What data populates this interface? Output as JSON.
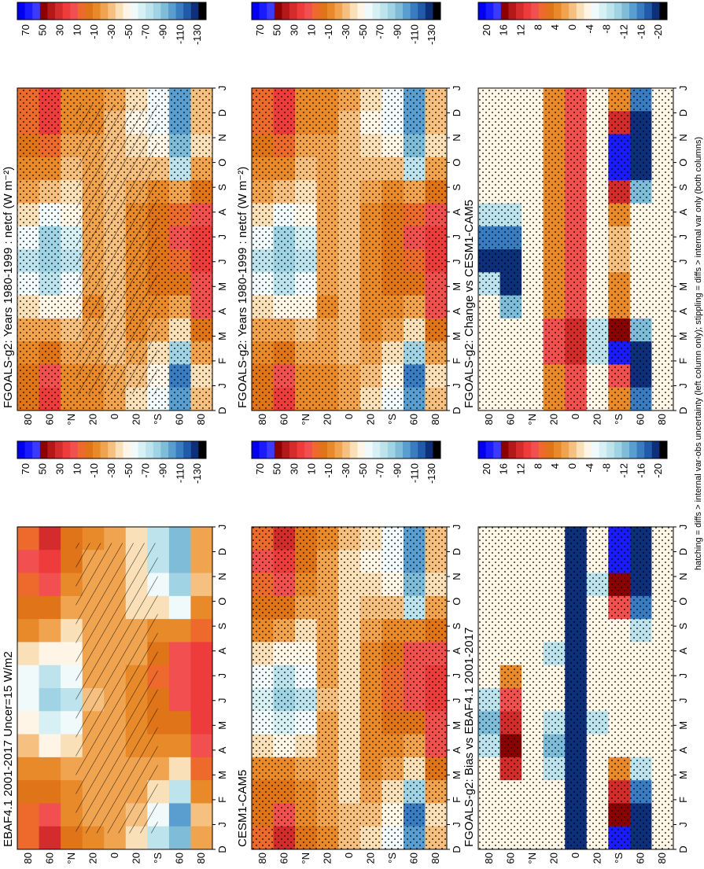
{
  "footnote": "hatching = diffs > internal var-obs uncertainty (left column only); stippling = diffs > internal var only (both columns)",
  "month_ticks": [
    "D",
    "J",
    "F",
    "M",
    "A",
    "M",
    "J",
    "J",
    "A",
    "S",
    "O",
    "N",
    "D",
    "J"
  ],
  "lat_ticks": [
    "80",
    "60",
    "°N",
    "20",
    "0",
    "20",
    "°S",
    "60",
    "80"
  ],
  "colorbars": {
    "absolute": {
      "labels": [
        "70",
        "50",
        "30",
        "10",
        "-10",
        "-30",
        "-50",
        "-70",
        "-90",
        "-110",
        "-130"
      ],
      "colors": [
        "#0000f0",
        "#1b1bff",
        "#3b3bff",
        "#8b0000",
        "#b51818",
        "#d42c2c",
        "#ee3b3b",
        "#f25050",
        "#ee6a2c",
        "#e07418",
        "#e88a2a",
        "#f0a450",
        "#f5c080",
        "#fae0b8",
        "#fff5e6",
        "#f0fafa",
        "#d6f0f3",
        "#bde4ec",
        "#a0d4e4",
        "#7fbcd8",
        "#5a9ed0",
        "#3a7cc0",
        "#205aa8",
        "#0e2f7a",
        "#000000"
      ]
    },
    "difference": {
      "labels": [
        "20",
        "16",
        "12",
        "8",
        "4",
        "0",
        "-4",
        "-8",
        "-12",
        "-16",
        "-20"
      ],
      "colors": [
        "#0000f0",
        "#1b1bff",
        "#3b3bff",
        "#8b0000",
        "#b51818",
        "#d42c2c",
        "#ee3b3b",
        "#f25050",
        "#ee6a2c",
        "#e07418",
        "#e88a2a",
        "#f0a450",
        "#f5c080",
        "#fae0b8",
        "#fff5e6",
        "#f0fafa",
        "#d6f0f3",
        "#bde4ec",
        "#a0d4e4",
        "#7fbcd8",
        "#5a9ed0",
        "#3a7cc0",
        "#205aa8",
        "#0e2f7a",
        "#000000"
      ]
    }
  },
  "chart_data": [
    {
      "type": "heatmap",
      "title": "FGOALS-g2: Years 1980-1999 : netcf (W m⁻²)",
      "x": [
        "D",
        "J",
        "F",
        "M",
        "A",
        "M",
        "J",
        "J",
        "A",
        "S",
        "O",
        "N",
        "D",
        "J"
      ],
      "y": [
        "80",
        "60",
        "°N",
        "20",
        "0",
        "20",
        "°S",
        "60",
        "80"
      ],
      "colorbar": "absolute",
      "overlays": [
        "stippling",
        "hatching"
      ],
      "values": [
        [
          0,
          -5,
          -10,
          -20,
          -40,
          -60,
          -70,
          -60,
          -40,
          -20,
          -10,
          0,
          5,
          5
        ],
        [
          25,
          10,
          -5,
          -20,
          -50,
          -70,
          -85,
          -80,
          -55,
          -30,
          -10,
          5,
          20,
          25
        ],
        [
          -10,
          -15,
          -20,
          -30,
          -45,
          -60,
          -75,
          -65,
          -50,
          -40,
          -30,
          -20,
          -10,
          -10
        ],
        [
          -10,
          -15,
          -20,
          -20,
          -15,
          -20,
          -25,
          -20,
          -20,
          -20,
          -20,
          -20,
          -15,
          -10
        ],
        [
          -25,
          -25,
          -30,
          -30,
          -30,
          -30,
          -30,
          -30,
          -30,
          -30,
          -30,
          -30,
          -30,
          -25
        ],
        [
          -40,
          -30,
          -20,
          -15,
          -15,
          -10,
          -10,
          -10,
          -15,
          -20,
          -30,
          -40,
          -45,
          -40
        ],
        [
          -60,
          -50,
          -35,
          -20,
          -10,
          -5,
          0,
          0,
          -5,
          -10,
          -30,
          -50,
          -60,
          -60
        ],
        [
          -100,
          -110,
          -80,
          -40,
          -20,
          -5,
          5,
          10,
          5,
          -20,
          -70,
          -90,
          -100,
          -100
        ],
        [
          -30,
          -40,
          -20,
          0,
          10,
          15,
          20,
          20,
          15,
          0,
          -20,
          -40,
          -30,
          -30
        ]
      ]
    },
    {
      "type": "heatmap",
      "title": "FGOALS-g2: Years 1980-1999 : netcf (W m⁻²)",
      "x": [
        "D",
        "J",
        "F",
        "M",
        "A",
        "M",
        "J",
        "J",
        "A",
        "S",
        "O",
        "N",
        "D",
        "J"
      ],
      "y": [
        "80",
        "60",
        "°N",
        "20",
        "0",
        "20",
        "°S",
        "60",
        "80"
      ],
      "colorbar": "absolute",
      "overlays": [
        "stippling"
      ],
      "values": [
        [
          0,
          -5,
          -10,
          -20,
          -40,
          -60,
          -70,
          -60,
          -40,
          -20,
          -10,
          0,
          5,
          5
        ],
        [
          25,
          10,
          -5,
          -20,
          -50,
          -70,
          -85,
          -80,
          -55,
          -30,
          -10,
          5,
          20,
          25
        ],
        [
          -10,
          -15,
          -20,
          -30,
          -45,
          -60,
          -75,
          -65,
          -50,
          -40,
          -30,
          -20,
          -10,
          -10
        ],
        [
          -10,
          -15,
          -20,
          -20,
          -15,
          -20,
          -25,
          -20,
          -20,
          -20,
          -20,
          -20,
          -15,
          -10
        ],
        [
          -25,
          -25,
          -30,
          -30,
          -30,
          -30,
          -30,
          -30,
          -30,
          -30,
          -30,
          -30,
          -30,
          -25
        ],
        [
          -40,
          -30,
          -20,
          -15,
          -15,
          -10,
          -10,
          -10,
          -15,
          -20,
          -30,
          -40,
          -45,
          -40
        ],
        [
          -60,
          -50,
          -35,
          -20,
          -10,
          -5,
          0,
          0,
          -5,
          -10,
          -30,
          -50,
          -60,
          -60
        ],
        [
          -100,
          -110,
          -80,
          -40,
          -20,
          -5,
          5,
          10,
          5,
          -20,
          -70,
          -90,
          -100,
          -100
        ],
        [
          -30,
          -40,
          -20,
          0,
          10,
          15,
          20,
          20,
          15,
          0,
          -20,
          -40,
          -30,
          -30
        ]
      ]
    },
    {
      "type": "heatmap",
      "title": "EBAF4.1 2001-2017 Uncer=15 W/m2",
      "x": [
        "D",
        "J",
        "F",
        "M",
        "A",
        "M",
        "J",
        "J",
        "A",
        "S",
        "O",
        "N",
        "D",
        "J"
      ],
      "y": [
        "80",
        "60",
        "°N",
        "20",
        "0",
        "20",
        "°S",
        "60",
        "80"
      ],
      "colorbar": "absolute",
      "overlays": [
        "hatching"
      ],
      "values": [
        [
          5,
          5,
          0,
          -10,
          -30,
          -50,
          -60,
          -55,
          -35,
          -15,
          -5,
          5,
          10,
          5
        ],
        [
          30,
          15,
          0,
          -15,
          -45,
          -65,
          -80,
          -75,
          -50,
          -25,
          -5,
          10,
          25,
          30
        ],
        [
          -5,
          -10,
          -15,
          -25,
          -40,
          -55,
          -70,
          -60,
          -45,
          -35,
          -25,
          -15,
          -5,
          -5
        ],
        [
          -15,
          -20,
          -20,
          -25,
          -20,
          -25,
          -30,
          -25,
          -25,
          -25,
          -25,
          -25,
          -20,
          -15
        ],
        [
          -20,
          -20,
          -25,
          -25,
          -25,
          -25,
          -25,
          -25,
          -25,
          -25,
          -25,
          -25,
          -25,
          -20
        ],
        [
          -35,
          -30,
          -25,
          -20,
          -15,
          -15,
          -15,
          -15,
          -20,
          -25,
          -35,
          -40,
          -40,
          -35
        ],
        [
          -70,
          -55,
          -40,
          -25,
          -15,
          -5,
          0,
          5,
          0,
          -15,
          -40,
          -60,
          -70,
          -70
        ],
        [
          -90,
          -100,
          -70,
          -35,
          -15,
          0,
          10,
          15,
          10,
          -10,
          -60,
          -80,
          -90,
          -90
        ],
        [
          -20,
          -30,
          -10,
          5,
          15,
          20,
          25,
          25,
          20,
          5,
          -15,
          -30,
          -20,
          -20
        ]
      ]
    },
    {
      "type": "heatmap",
      "title": "CESM1-CAM5",
      "x": [
        "D",
        "J",
        "F",
        "M",
        "A",
        "M",
        "J",
        "J",
        "A",
        "S",
        "O",
        "N",
        "D",
        "J"
      ],
      "y": [
        "80",
        "60",
        "°N",
        "20",
        "0",
        "20",
        "°S",
        "60",
        "80"
      ],
      "colorbar": "absolute",
      "overlays": [
        "stippling"
      ],
      "values": [
        [
          5,
          0,
          -5,
          -15,
          -35,
          -55,
          -65,
          -55,
          -35,
          -15,
          -5,
          5,
          10,
          5
        ],
        [
          30,
          15,
          0,
          -15,
          -45,
          -65,
          -80,
          -75,
          -50,
          -25,
          -5,
          10,
          25,
          30
        ],
        [
          -5,
          -10,
          -15,
          -25,
          -40,
          -55,
          -70,
          -60,
          -45,
          -35,
          -25,
          -15,
          -5,
          -5
        ],
        [
          -15,
          -20,
          -25,
          -25,
          -20,
          -25,
          -30,
          -25,
          -25,
          -25,
          -25,
          -25,
          -20,
          -15
        ],
        [
          -30,
          -30,
          -35,
          -35,
          -35,
          -35,
          -35,
          -35,
          -35,
          -35,
          -35,
          -35,
          -35,
          -30
        ],
        [
          -40,
          -30,
          -20,
          -15,
          -10,
          -10,
          -10,
          -10,
          -15,
          -20,
          -30,
          -40,
          -45,
          -40
        ],
        [
          -60,
          -50,
          -35,
          -20,
          -10,
          -5,
          5,
          5,
          0,
          -10,
          -30,
          -50,
          -60,
          -60
        ],
        [
          -100,
          -110,
          -80,
          -40,
          -20,
          0,
          10,
          15,
          10,
          -15,
          -70,
          -90,
          -100,
          -100
        ],
        [
          -30,
          -40,
          -20,
          0,
          10,
          15,
          20,
          20,
          15,
          0,
          -20,
          -40,
          -30,
          -30
        ]
      ]
    },
    {
      "type": "heatmap",
      "title": "FGOALS-g2: Bias vs EBAF4.1 2001-2017",
      "x": [
        "D",
        "J",
        "F",
        "M",
        "A",
        "M",
        "J",
        "J",
        "A",
        "S",
        "O",
        "N",
        "D",
        "J"
      ],
      "y": [
        "80",
        "60",
        "°N",
        "20",
        "0",
        "20",
        "°S",
        "60",
        "80"
      ],
      "colorbar": "difference",
      "overlays": [
        "stippling"
      ],
      "values": [
        [
          -4,
          -4,
          -4,
          -4,
          -8,
          -12,
          -8,
          -4,
          -4,
          -4,
          -4,
          -4,
          -4,
          -4
        ],
        [
          -4,
          -4,
          -4,
          12,
          16,
          12,
          8,
          4,
          -4,
          -4,
          -4,
          -4,
          -4,
          -4
        ],
        [
          -4,
          -4,
          -4,
          -4,
          -4,
          -4,
          -4,
          -4,
          -4,
          -4,
          -4,
          -4,
          -4,
          -4
        ],
        [
          -4,
          -4,
          -4,
          -8,
          -12,
          -8,
          -4,
          -4,
          -8,
          -4,
          -4,
          -4,
          -4,
          -4
        ],
        [
          -20,
          -20,
          -20,
          -20,
          -20,
          -20,
          -20,
          -20,
          -20,
          -20,
          -20,
          -20,
          -20,
          -20
        ],
        [
          -4,
          -4,
          -4,
          -4,
          -4,
          -8,
          -4,
          -4,
          -4,
          -4,
          -4,
          -8,
          -4,
          -4
        ],
        [
          20,
          16,
          12,
          4,
          -4,
          -4,
          -4,
          -4,
          -4,
          -4,
          8,
          16,
          20,
          20
        ],
        [
          -20,
          -20,
          -16,
          -8,
          -4,
          -4,
          -4,
          -4,
          -4,
          -8,
          -16,
          -20,
          -20,
          -20
        ],
        [
          -4,
          -4,
          -4,
          -4,
          -4,
          -4,
          -4,
          -4,
          -4,
          -4,
          -4,
          -4,
          -4,
          -4
        ]
      ]
    },
    {
      "type": "heatmap",
      "title": "FGOALS-g2: Change vs CESM1-CAM5",
      "x": [
        "D",
        "J",
        "F",
        "M",
        "A",
        "M",
        "J",
        "J",
        "A",
        "S",
        "O",
        "N",
        "D",
        "J"
      ],
      "y": [
        "80",
        "60",
        "°N",
        "20",
        "0",
        "20",
        "°S",
        "60",
        "80"
      ],
      "colorbar": "difference",
      "overlays": [
        "stippling"
      ],
      "values": [
        [
          -4,
          -4,
          -4,
          -4,
          -4,
          -8,
          -20,
          -16,
          -8,
          -4,
          -4,
          -4,
          -4,
          -4
        ],
        [
          -4,
          -4,
          -4,
          -4,
          -12,
          -20,
          -20,
          -16,
          -8,
          -4,
          -4,
          -4,
          -4,
          -4
        ],
        [
          -4,
          -4,
          -4,
          -4,
          -4,
          -4,
          -4,
          -4,
          -4,
          -4,
          -4,
          -4,
          -4,
          -4
        ],
        [
          4,
          4,
          8,
          8,
          4,
          4,
          4,
          4,
          4,
          4,
          4,
          4,
          4,
          4
        ],
        [
          8,
          8,
          12,
          12,
          8,
          8,
          8,
          8,
          8,
          8,
          8,
          8,
          8,
          8
        ],
        [
          -4,
          -4,
          -8,
          -8,
          -4,
          -4,
          -4,
          -4,
          -4,
          -4,
          -4,
          -4,
          -4,
          -4
        ],
        [
          4,
          8,
          20,
          16,
          4,
          4,
          0,
          0,
          4,
          12,
          20,
          20,
          12,
          4
        ],
        [
          -16,
          -20,
          -20,
          -12,
          -4,
          -4,
          -4,
          -4,
          -4,
          -12,
          -20,
          -20,
          -20,
          -16
        ],
        [
          -4,
          -4,
          -4,
          -4,
          -4,
          -4,
          -4,
          -4,
          -4,
          -4,
          -4,
          -4,
          -4,
          -4
        ]
      ]
    }
  ]
}
